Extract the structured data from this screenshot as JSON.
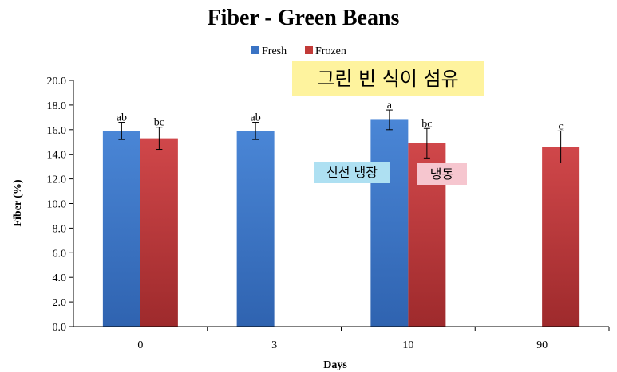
{
  "chart_data": {
    "type": "bar",
    "title": "Fiber - Green Beans",
    "xlabel": "Days",
    "ylabel": "Fiber (%)",
    "ylim": [
      0,
      20
    ],
    "yticks": [
      "0.0",
      "2.0",
      "4.0",
      "6.0",
      "8.0",
      "10.0",
      "12.0",
      "14.0",
      "16.0",
      "18.0",
      "20.0"
    ],
    "categories": [
      "0",
      "3",
      "10",
      "90"
    ],
    "legend_position": "top-center",
    "series": [
      {
        "name": "Fresh",
        "color": "#3a73c4",
        "values": [
          15.9,
          15.9,
          16.8,
          null
        ],
        "errors": [
          0.7,
          0.7,
          0.8,
          null
        ],
        "labels": [
          "ab",
          "ab",
          "a",
          ""
        ]
      },
      {
        "name": "Frozen",
        "color": "#c23a38",
        "values": [
          15.3,
          null,
          14.9,
          14.6
        ],
        "errors": [
          0.9,
          null,
          1.2,
          1.3
        ],
        "labels": [
          "bc",
          "",
          "bc",
          "c"
        ]
      }
    ]
  },
  "annotations": {
    "main": "그린 빈 식이 섬유",
    "fresh_storage": "신선 냉장",
    "frozen": "냉동"
  }
}
